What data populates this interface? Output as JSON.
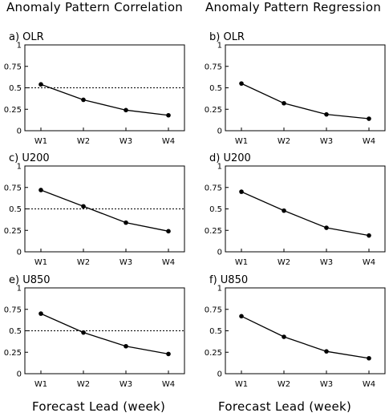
{
  "titles": {
    "left": "Anomaly Pattern Correlation",
    "right": "Anomaly Pattern Regression"
  },
  "footer": {
    "left": "Forecast Lead (week)",
    "right": "Forecast Lead (week)"
  },
  "chart_data": [
    {
      "type": "line",
      "panel": "a) OLR",
      "categories": [
        "W1",
        "W2",
        "W3",
        "W4"
      ],
      "values": [
        0.54,
        0.36,
        0.24,
        0.18
      ],
      "ylim": [
        0,
        1
      ],
      "yticks": [
        "0",
        "0.25",
        "0.5",
        "0.75",
        "1"
      ],
      "reference_line": 0.5,
      "grid": false
    },
    {
      "type": "line",
      "panel": "b) OLR",
      "categories": [
        "W1",
        "W2",
        "W3",
        "W4"
      ],
      "values": [
        0.55,
        0.32,
        0.19,
        0.14
      ],
      "ylim": [
        0,
        1
      ],
      "yticks": [
        "0",
        "0.25",
        "0.5",
        "0.75",
        "1"
      ],
      "reference_line": null,
      "grid": false
    },
    {
      "type": "line",
      "panel": "c) U200",
      "categories": [
        "W1",
        "W2",
        "W3",
        "W4"
      ],
      "values": [
        0.72,
        0.53,
        0.34,
        0.24
      ],
      "ylim": [
        0,
        1
      ],
      "yticks": [
        "0",
        "0.25",
        "0.5",
        "0.75",
        "1"
      ],
      "reference_line": 0.5,
      "grid": false
    },
    {
      "type": "line",
      "panel": "d) U200",
      "categories": [
        "W1",
        "W2",
        "W3",
        "W4"
      ],
      "values": [
        0.7,
        0.48,
        0.28,
        0.19
      ],
      "ylim": [
        0,
        1
      ],
      "yticks": [
        "0",
        "0.25",
        "0.5",
        "0.75",
        "1"
      ],
      "reference_line": null,
      "grid": false
    },
    {
      "type": "line",
      "panel": "e) U850",
      "categories": [
        "W1",
        "W2",
        "W3",
        "W4"
      ],
      "values": [
        0.7,
        0.48,
        0.32,
        0.23
      ],
      "ylim": [
        0,
        1
      ],
      "yticks": [
        "0",
        "0.25",
        "0.5",
        "0.75",
        "1"
      ],
      "reference_line": 0.5,
      "grid": false
    },
    {
      "type": "line",
      "panel": "f) U850",
      "categories": [
        "W1",
        "W2",
        "W3",
        "W4"
      ],
      "values": [
        0.67,
        0.43,
        0.26,
        0.18
      ],
      "ylim": [
        0,
        1
      ],
      "yticks": [
        "0",
        "0.25",
        "0.5",
        "0.75",
        "1"
      ],
      "reference_line": null,
      "grid": false
    }
  ]
}
